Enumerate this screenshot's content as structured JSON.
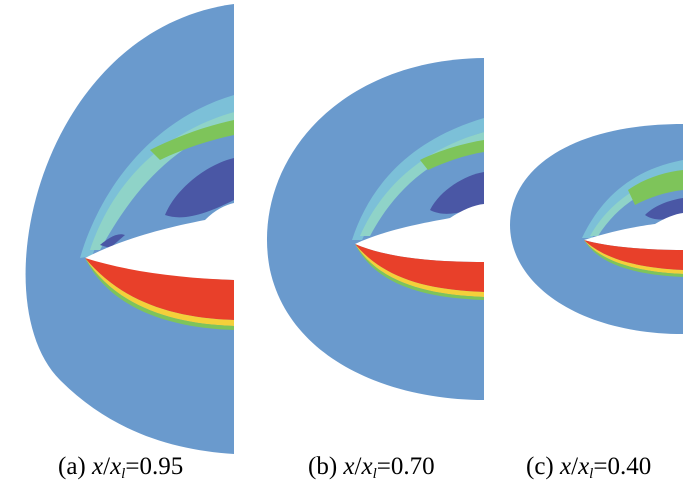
{
  "panels": [
    {
      "id": "a",
      "prefix": "(a) ",
      "var": "x",
      "slash": "/",
      "var2": "x",
      "sub": "l",
      "value": "=0.95",
      "field_color": "#6a9acd"
    },
    {
      "id": "b",
      "prefix": "(b) ",
      "var": "x",
      "slash": "/",
      "var2": "x",
      "sub": "l",
      "value": "=0.70",
      "field_color": "#6a9acd"
    },
    {
      "id": "c",
      "prefix": "(c) ",
      "var": "x",
      "slash": "/",
      "var2": "x",
      "sub": "l",
      "value": "=0.40",
      "field_color": "#6a9acd"
    }
  ],
  "contour_colors": [
    "#6a9acd",
    "#7cc0d8",
    "#8fd3c8",
    "#7ec45a",
    "#4a57a5",
    "#e8402a",
    "#f4d03a"
  ]
}
